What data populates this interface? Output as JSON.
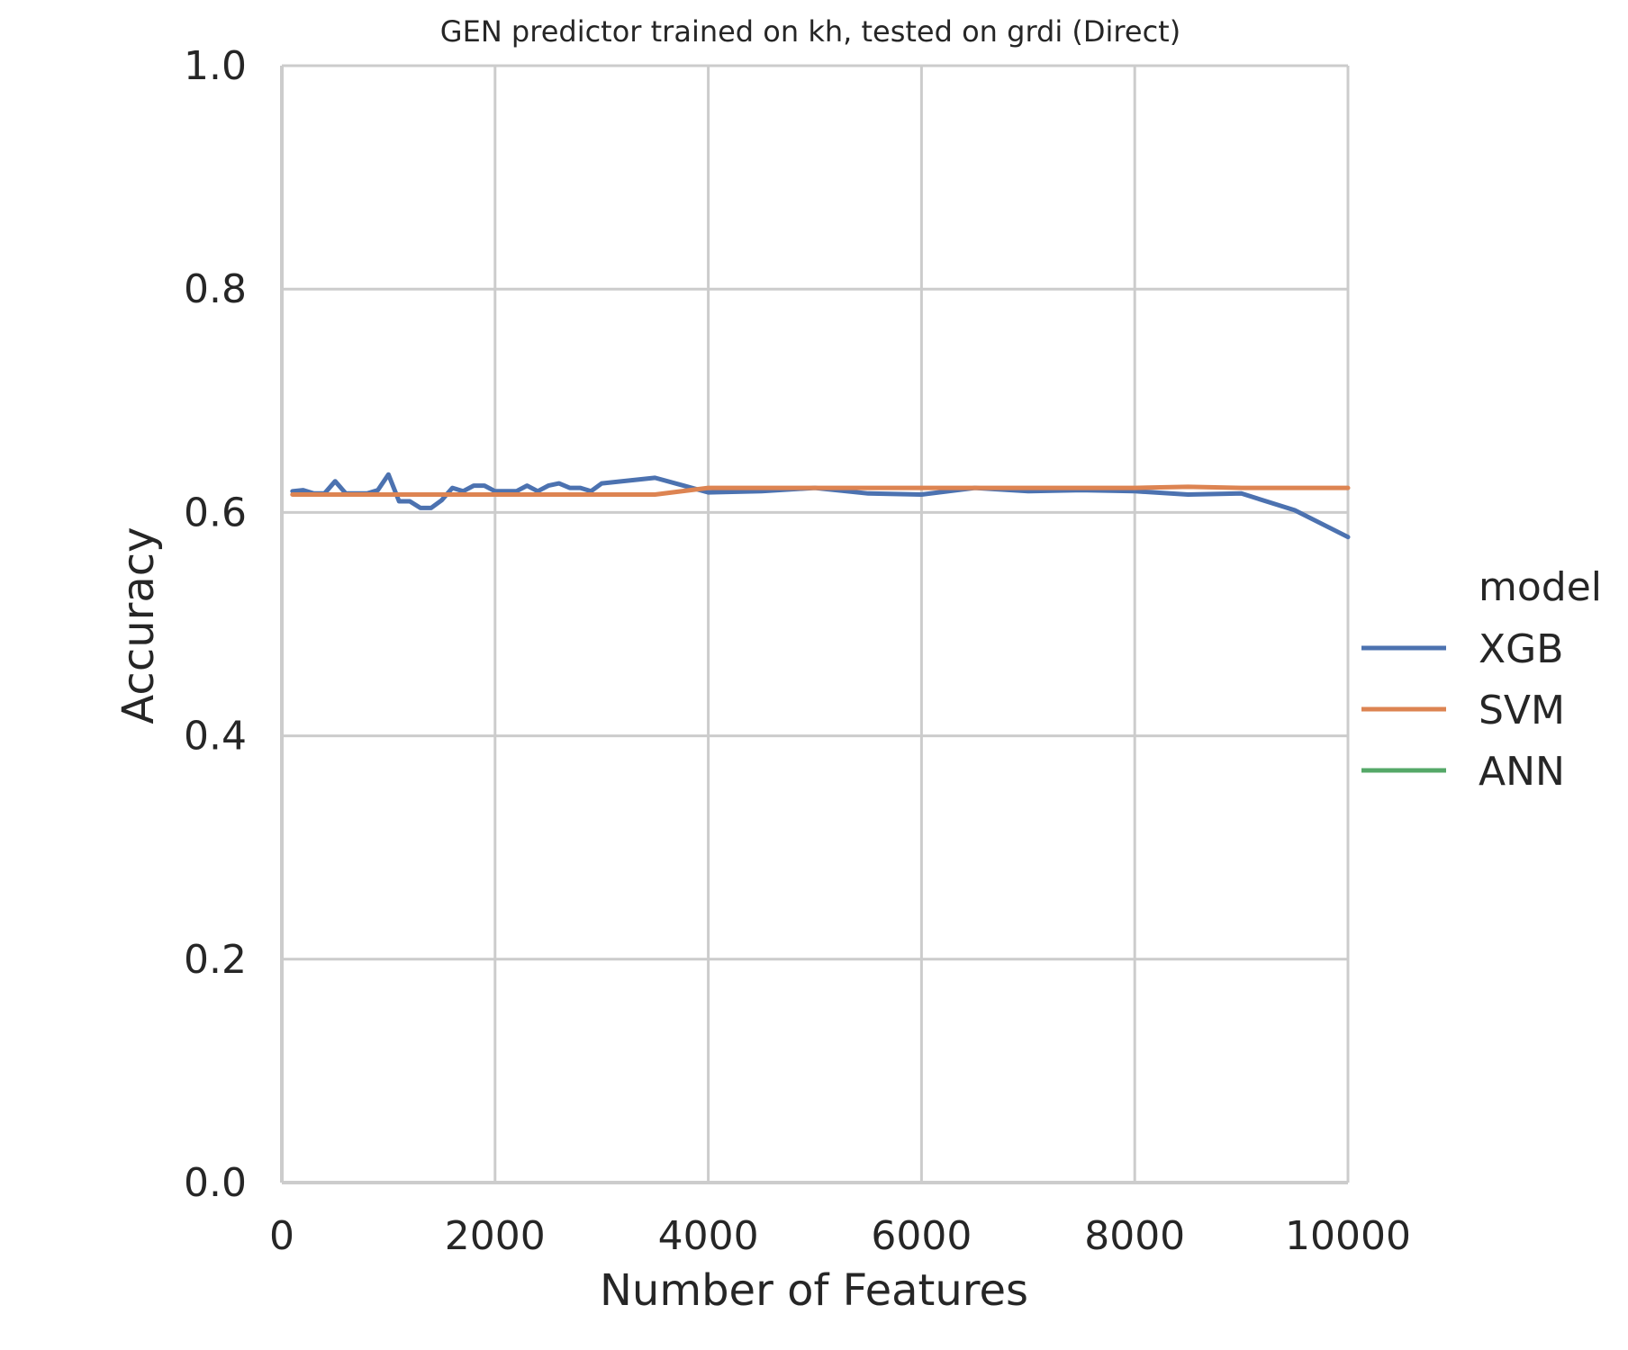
{
  "chart_data": {
    "type": "line",
    "title": "GEN predictor trained on kh, tested on grdi (Direct)",
    "xlabel": "Number of Features",
    "ylabel": "Accuracy",
    "xlim": [
      0,
      10000
    ],
    "ylim": [
      0.0,
      1.0
    ],
    "xticks": [
      0,
      2000,
      4000,
      6000,
      8000,
      10000
    ],
    "xtick_labels": [
      "0",
      "2000",
      "4000",
      "6000",
      "8000",
      "10000"
    ],
    "yticks": [
      0.0,
      0.2,
      0.4,
      0.6,
      0.8,
      1.0
    ],
    "ytick_labels": [
      "0.0",
      "0.2",
      "0.4",
      "0.6",
      "0.8",
      "1.0"
    ],
    "grid": true,
    "legend": {
      "title": "model",
      "placement": "right"
    },
    "series": [
      {
        "name": "XGB",
        "color": "#4c72b0",
        "x": [
          100,
          200,
          300,
          400,
          500,
          600,
          700,
          800,
          900,
          1000,
          1100,
          1200,
          1300,
          1400,
          1500,
          1600,
          1700,
          1800,
          1900,
          2000,
          2100,
          2200,
          2300,
          2400,
          2500,
          2600,
          2700,
          2800,
          2900,
          3000,
          3500,
          4000,
          4500,
          5000,
          5500,
          6000,
          6500,
          7000,
          7500,
          8000,
          8500,
          9000,
          9500,
          10000
        ],
        "y": [
          0.619,
          0.62,
          0.617,
          0.617,
          0.628,
          0.617,
          0.617,
          0.617,
          0.62,
          0.634,
          0.61,
          0.61,
          0.604,
          0.604,
          0.611,
          0.622,
          0.619,
          0.624,
          0.624,
          0.619,
          0.619,
          0.619,
          0.624,
          0.619,
          0.624,
          0.626,
          0.622,
          0.622,
          0.619,
          0.626,
          0.631,
          0.618,
          0.619,
          0.622,
          0.617,
          0.616,
          0.622,
          0.619,
          0.62,
          0.619,
          0.616,
          0.617,
          0.602,
          0.578
        ]
      },
      {
        "name": "SVM",
        "color": "#dd8452",
        "x": [
          100,
          3500,
          4000,
          5000,
          6000,
          7000,
          8000,
          8500,
          9000,
          10000
        ],
        "y": [
          0.616,
          0.616,
          0.622,
          0.622,
          0.622,
          0.622,
          0.622,
          0.623,
          0.622,
          0.622
        ]
      },
      {
        "name": "ANN",
        "color": "#55a868",
        "x": [],
        "y": []
      }
    ]
  }
}
